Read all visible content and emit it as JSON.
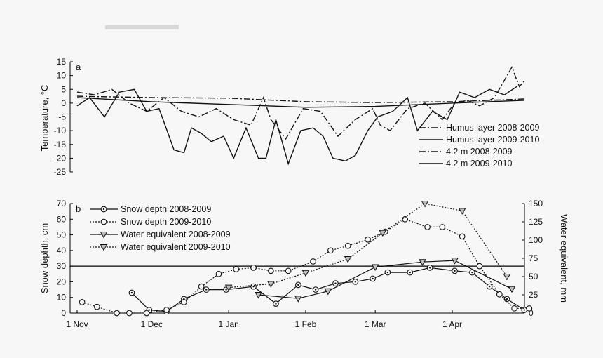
{
  "chart_data": [
    {
      "type": "line",
      "panel_label": "a",
      "ylabel": "Temperature, °C",
      "ylim": [
        -25,
        15
      ],
      "yticks": [
        "15",
        "10",
        "5",
        "0",
        "-5",
        "-10",
        "-15",
        "-20",
        "-25"
      ],
      "x_axis": "shared with panel b (1 Nov – 1 Apr)",
      "legend": "right",
      "series": [
        {
          "name": "Humus layer 2008-2009",
          "style": "dash-dot",
          "x": [
            "2008-11-01",
            "2008-11-08",
            "2008-11-15",
            "2008-11-22",
            "2008-11-29",
            "2008-12-06",
            "2008-12-13",
            "2008-12-20",
            "2008-12-27",
            "2009-01-03",
            "2009-01-10",
            "2009-01-15",
            "2009-01-18",
            "2009-01-24",
            "2009-01-31",
            "2009-02-07",
            "2009-02-14",
            "2009-02-21",
            "2009-02-28",
            "2009-03-03",
            "2009-03-07",
            "2009-03-14",
            "2009-03-21",
            "2009-03-28",
            "2009-04-02",
            "2009-04-07",
            "2009-04-12",
            "2009-04-18",
            "2009-04-25",
            "2009-04-28",
            "2009-04-30"
          ],
          "values": [
            4,
            3,
            5,
            0,
            -3,
            2,
            -3,
            -5,
            -2,
            -6,
            -8,
            2,
            -6,
            -13,
            -2,
            -3,
            -12,
            -6,
            -2,
            -8,
            -10,
            -2,
            0,
            -6,
            0,
            1,
            -1,
            2,
            13,
            6,
            8
          ]
        },
        {
          "name": "Humus layer 2009-2010",
          "style": "solid",
          "x": [
            "2009-11-01",
            "2009-11-06",
            "2009-11-12",
            "2009-11-18",
            "2009-11-24",
            "2009-11-29",
            "2009-12-04",
            "2009-12-10",
            "2009-12-14",
            "2009-12-17",
            "2009-12-21",
            "2009-12-25",
            "2009-12-30",
            "2010-01-03",
            "2010-01-08",
            "2010-01-13",
            "2010-01-16",
            "2010-01-20",
            "2010-01-25",
            "2010-01-30",
            "2010-02-04",
            "2010-02-08",
            "2010-02-12",
            "2010-02-17",
            "2010-02-21",
            "2010-02-26",
            "2010-03-02",
            "2010-03-08",
            "2010-03-14",
            "2010-03-18",
            "2010-03-24",
            "2010-03-30",
            "2010-04-04",
            "2010-04-10",
            "2010-04-16",
            "2010-04-22",
            "2010-04-27"
          ],
          "values": [
            -1,
            2,
            -5,
            4,
            5,
            -3,
            -2,
            -17,
            -18,
            -9,
            -11,
            -14,
            -12,
            -20,
            -9,
            -20,
            -20,
            -6,
            -22,
            -10,
            -9,
            -12,
            -20,
            -21,
            -19,
            -10,
            -5,
            -3,
            2,
            -10,
            -3,
            -6,
            4,
            2,
            5,
            3,
            6
          ]
        },
        {
          "name": "4.2 m 2008-2009",
          "style": "dash-dot",
          "x": [
            "2008-11-01",
            "2008-12-01",
            "2009-01-01",
            "2009-02-01",
            "2009-03-01",
            "2009-04-01",
            "2009-04-30"
          ],
          "values": [
            2.5,
            2.0,
            1.8,
            0.5,
            0.2,
            0.5,
            1.5
          ]
        },
        {
          "name": "4.2 m 2009-2010",
          "style": "solid",
          "x": [
            "2009-11-01",
            "2009-12-01",
            "2010-01-01",
            "2010-02-01",
            "2010-03-01",
            "2010-04-01",
            "2010-04-30"
          ],
          "values": [
            2.0,
            0.5,
            -0.5,
            -1.5,
            -1.2,
            0.0,
            1.0
          ]
        }
      ]
    },
    {
      "type": "line",
      "panel_label": "b",
      "ylabel": "Snow dephth, cm",
      "y2label": "Water equivalent, mm",
      "ylim": [
        0,
        70
      ],
      "y2lim": [
        0,
        150
      ],
      "yticks": [
        "70",
        "60",
        "50",
        "40",
        "30",
        "20",
        "10",
        "0"
      ],
      "y2ticks": [
        "150",
        "125",
        "100",
        "75",
        "50",
        "25",
        "0"
      ],
      "xticks": [
        "1 Nov",
        "1 Dec",
        "1 Jan",
        "1 Feb",
        "1 Mar",
        "1 Apr"
      ],
      "reference_line": 30,
      "legend": "top-left",
      "series": [
        {
          "name": "Snow depth 2008-2009",
          "axis": "left",
          "style": "solid",
          "marker": "circle-dot",
          "x": [
            "11-23",
            "11-30",
            "12-07",
            "12-14",
            "12-23",
            "12-31",
            "01-11",
            "01-20",
            "01-29",
            "02-05",
            "02-13",
            "02-21",
            "02-28",
            "03-06",
            "03-15",
            "03-23",
            "04-02",
            "04-09",
            "04-16",
            "04-23",
            "04-30"
          ],
          "values": [
            13,
            2,
            1,
            9,
            15,
            15,
            17,
            6,
            18,
            15,
            19,
            20,
            22,
            26,
            26,
            29,
            27,
            26,
            17,
            9,
            2
          ]
        },
        {
          "name": "Snow depth 2009-2010",
          "axis": "left",
          "style": "dotted",
          "marker": "circle",
          "x": [
            "11-03",
            "11-09",
            "11-17",
            "11-22",
            "11-29",
            "12-07",
            "12-14",
            "12-21",
            "12-28",
            "01-04",
            "01-11",
            "01-18",
            "01-25",
            "02-04",
            "02-11",
            "02-18",
            "02-26",
            "03-05",
            "03-13",
            "03-22",
            "03-28",
            "04-05",
            "04-12",
            "04-20",
            "04-26",
            "05-02"
          ],
          "values": [
            7,
            4,
            0,
            0,
            0,
            2,
            7,
            17,
            25,
            28,
            29,
            27,
            27,
            33,
            40,
            43,
            47,
            52,
            60,
            55,
            55,
            49,
            30,
            12,
            3,
            3
          ]
        },
        {
          "name": "Water equivalent 2008-2009",
          "axis": "right",
          "style": "solid",
          "marker": "triangle-down",
          "x": [
            "01-13",
            "01-29",
            "02-10",
            "03-01",
            "03-20",
            "04-02",
            "04-25"
          ],
          "values": [
            25,
            20,
            30,
            63,
            70,
            72,
            33
          ]
        },
        {
          "name": "Water equivalent 2009-2010",
          "axis": "right",
          "style": "dotted",
          "marker": "triangle-down",
          "x": [
            "01-01",
            "01-18",
            "02-01",
            "02-18",
            "03-04",
            "03-21",
            "04-05",
            "04-23"
          ],
          "values": [
            35,
            40,
            55,
            74,
            110,
            150,
            140,
            50
          ]
        }
      ]
    }
  ]
}
